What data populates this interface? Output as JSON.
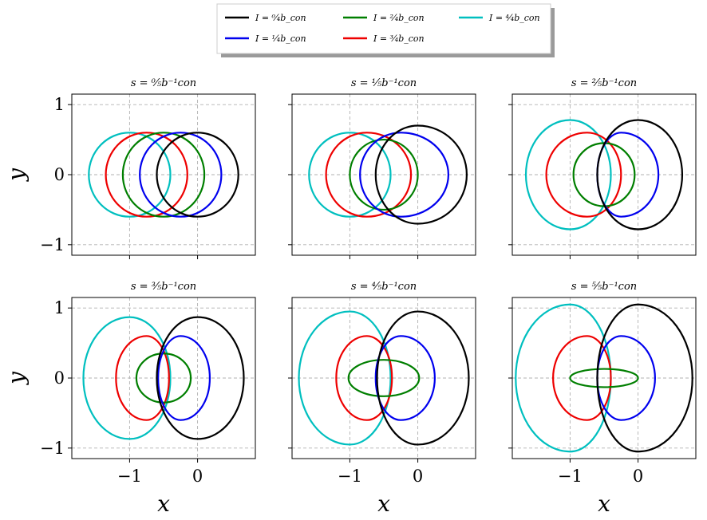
{
  "chart_data": {
    "type": "line",
    "xlabel": "x",
    "ylabel": "y",
    "xticks": [
      -1,
      0
    ],
    "yticks": [
      -1,
      0,
      1
    ],
    "xtick_labels": [
      "−1",
      "0"
    ],
    "ytick_labels": [
      "−1",
      "0",
      "1"
    ],
    "xlim": [
      -1.85,
      0.85
    ],
    "ylim": [
      -1.15,
      1.15
    ],
    "grid": true,
    "legend_position": "top-center",
    "series": [
      {
        "name": "I = 0/4 b_con",
        "label": "I = ⁰⁄₄b_con",
        "color": "#000000"
      },
      {
        "name": "I = 1/4 b_con",
        "label": "I = ¹⁄₄b_con",
        "color": "#0000ee"
      },
      {
        "name": "I = 2/4 b_con",
        "label": "I = ²⁄₄b_con",
        "color": "#007f00"
      },
      {
        "name": "I = 3/4 b_con",
        "label": "I = ³⁄₄b_con",
        "color": "#ee0000"
      },
      {
        "name": "I = 4/4 b_con",
        "label": "I = ⁴⁄₄b_con",
        "color": "#00bfbf"
      }
    ],
    "panels": [
      {
        "title": "s = ⁰⁄₅b⁻¹con",
        "s": 0.0,
        "curves": [
          {
            "series": 0,
            "cx": 0.0,
            "left": -0.6,
            "right": 0.6,
            "top": 0.6,
            "bottom": -0.6
          },
          {
            "series": 1,
            "cx": -0.25,
            "left": -0.85,
            "right": 0.35,
            "top": 0.6,
            "bottom": -0.6
          },
          {
            "series": 2,
            "cx": -0.5,
            "left": -1.1,
            "right": 0.1,
            "top": 0.6,
            "bottom": -0.6
          },
          {
            "series": 3,
            "cx": -0.75,
            "left": -1.35,
            "right": -0.15,
            "top": 0.6,
            "bottom": -0.6
          },
          {
            "series": 4,
            "cx": -1.0,
            "left": -1.6,
            "right": -0.4,
            "top": 0.6,
            "bottom": -0.6
          }
        ]
      },
      {
        "title": "s = ¹⁄₅b⁻¹con",
        "s": 0.2,
        "curves": [
          {
            "series": 0,
            "cx": 0.0,
            "left": -0.62,
            "right": 0.72,
            "top": 0.7,
            "bottom": -0.7
          },
          {
            "series": 1,
            "cx": -0.25,
            "left": -0.85,
            "right": 0.45,
            "top": 0.6,
            "bottom": -0.6
          },
          {
            "series": 2,
            "cx": -0.5,
            "left": -1.0,
            "right": 0.0,
            "top": 0.5,
            "bottom": -0.5
          },
          {
            "series": 3,
            "cx": -0.75,
            "left": -1.35,
            "right": -0.1,
            "top": 0.6,
            "bottom": -0.6
          },
          {
            "series": 4,
            "cx": -1.0,
            "left": -1.6,
            "right": -0.4,
            "top": 0.6,
            "bottom": -0.6
          }
        ]
      },
      {
        "title": "s = ²⁄₅b⁻¹con",
        "s": 0.4,
        "curves": [
          {
            "series": 0,
            "cx": 0.0,
            "left": -0.6,
            "right": 0.65,
            "top": 0.78,
            "bottom": -0.78
          },
          {
            "series": 1,
            "cx": -0.25,
            "left": -0.6,
            "right": 0.3,
            "top": 0.6,
            "bottom": -0.6
          },
          {
            "series": 2,
            "cx": -0.5,
            "left": -0.95,
            "right": -0.05,
            "top": 0.45,
            "bottom": -0.45
          },
          {
            "series": 3,
            "cx": -0.75,
            "left": -1.35,
            "right": -0.25,
            "top": 0.6,
            "bottom": -0.6
          },
          {
            "series": 4,
            "cx": -1.0,
            "left": -1.65,
            "right": -0.4,
            "top": 0.78,
            "bottom": -0.78
          }
        ]
      },
      {
        "title": "s = ³⁄₅b⁻¹con",
        "s": 0.6,
        "curves": [
          {
            "series": 0,
            "cx": 0.0,
            "left": -0.6,
            "right": 0.68,
            "top": 0.87,
            "bottom": -0.87
          },
          {
            "series": 1,
            "cx": -0.25,
            "left": -0.58,
            "right": 0.18,
            "top": 0.6,
            "bottom": -0.6
          },
          {
            "series": 2,
            "cx": -0.5,
            "left": -0.9,
            "right": -0.1,
            "top": 0.35,
            "bottom": -0.35
          },
          {
            "series": 3,
            "cx": -0.75,
            "left": -1.2,
            "right": -0.42,
            "top": 0.6,
            "bottom": -0.6
          },
          {
            "series": 4,
            "cx": -1.0,
            "left": -1.68,
            "right": -0.4,
            "top": 0.87,
            "bottom": -0.87
          }
        ]
      },
      {
        "title": "s = ⁴⁄₅b⁻¹con",
        "s": 0.8,
        "curves": [
          {
            "series": 0,
            "cx": 0.0,
            "left": -0.6,
            "right": 0.75,
            "top": 0.95,
            "bottom": -0.95
          },
          {
            "series": 1,
            "cx": -0.25,
            "left": -0.62,
            "right": 0.25,
            "top": 0.6,
            "bottom": -0.6
          },
          {
            "series": 2,
            "cx": -0.5,
            "left": -1.02,
            "right": 0.02,
            "top": 0.26,
            "bottom": -0.26
          },
          {
            "series": 3,
            "cx": -0.75,
            "left": -1.2,
            "right": -0.38,
            "top": 0.6,
            "bottom": -0.6
          },
          {
            "series": 4,
            "cx": -1.0,
            "left": -1.75,
            "right": -0.4,
            "top": 0.95,
            "bottom": -0.95
          }
        ]
      },
      {
        "title": "s = ⁵⁄₅b⁻¹con",
        "s": 1.0,
        "curves": [
          {
            "series": 0,
            "cx": 0.0,
            "left": -0.6,
            "right": 0.8,
            "top": 1.05,
            "bottom": -1.05
          },
          {
            "series": 1,
            "cx": -0.25,
            "left": -0.6,
            "right": 0.25,
            "top": 0.6,
            "bottom": -0.6
          },
          {
            "series": 2,
            "cx": -0.5,
            "left": -1.0,
            "right": 0.0,
            "top": 0.13,
            "bottom": -0.13
          },
          {
            "series": 3,
            "cx": -0.75,
            "left": -1.25,
            "right": -0.4,
            "top": 0.6,
            "bottom": -0.6
          },
          {
            "series": 4,
            "cx": -1.0,
            "left": -1.8,
            "right": -0.4,
            "top": 1.05,
            "bottom": -1.05
          }
        ]
      }
    ]
  }
}
